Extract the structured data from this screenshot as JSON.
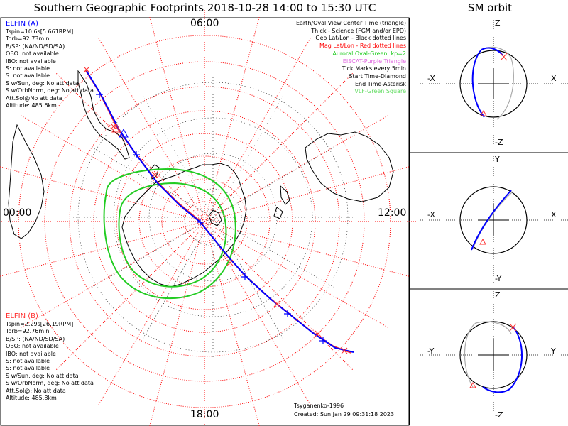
{
  "title": "Southern Geographic Footprints 2018-10-28 14:00 to 15:30 UTC",
  "sm_title": "SM orbit",
  "local_time_labels": {
    "top": "06:00",
    "left": "00:00",
    "right": "12:00",
    "bottom": "18:00"
  },
  "spacecraft_a": {
    "name": "ELFIN (A)",
    "color": "#0000ff",
    "lines": [
      "Tspin=10.6s[5.661RPM]",
      "Torb=92.73min",
      "B/SP: (NA/ND/SD/SA)",
      "OBO: not available",
      "IBO: not available",
      "S: not available",
      "S: not available",
      "S w/Sun, deg: No att data",
      "S w/OrbNorm, deg: No att data",
      "Att.Sol@No att data",
      "Altitude: 485.6km"
    ]
  },
  "spacecraft_b": {
    "name": "ELFIN (B)",
    "color": "#ff3030",
    "lines": [
      "Tspin=2.29s[26.19RPM]",
      "Torb=92.76min",
      "B/SP: (NA/ND/SD/SA)",
      "OBO: not available",
      "IBO: not available",
      "S: not available",
      "S: not available",
      "S w/Sun, deg: No att data",
      "S w/OrbNorm, deg: No att data",
      "Att.Sol@: No att data",
      "Altitude: 485.8km"
    ]
  },
  "legend": [
    {
      "text": "Earth/Oval View Center Time (triangle)",
      "color": "#000000"
    },
    {
      "text": "Thick - Science (FGM and/or EPD)",
      "color": "#000000"
    },
    {
      "text": "Geo Lat/Lon - Black dotted lines",
      "color": "#000000"
    },
    {
      "text": "Mag Lat/Lon - Red dotted lines",
      "color": "#ff0000"
    },
    {
      "text": "Auroral Oval-Green, kp=2",
      "color": "#22cc22"
    },
    {
      "text": "EISCAT-Purple Triangle",
      "color": "#e066e0"
    },
    {
      "text": "Tick Marks every 5min",
      "color": "#000000"
    },
    {
      "text": "Start Time-Diamond",
      "color": "#000000"
    },
    {
      "text": "End Time-Asterisk",
      "color": "#000000"
    },
    {
      "text": "VLF-Green Square",
      "color": "#66dd66"
    }
  ],
  "footer": {
    "model": "Tsyganenko-1996",
    "created": "Created: Sun Jan 29 09:31:18 2023"
  },
  "sm_panels": [
    {
      "top": "Z",
      "bottom": "-Z",
      "left": "-X",
      "right": "X"
    },
    {
      "top": "Y",
      "bottom": "-Y",
      "left": "-X",
      "right": "X"
    },
    {
      "top": "Z",
      "bottom": "-Z",
      "left": "-Y",
      "right": "Y"
    }
  ],
  "colors": {
    "orbit": "#0000ff",
    "oval": "#22cc22",
    "mag_grid": "#ff0000",
    "geo_grid": "#000000",
    "far_side": "#aaaaaa"
  }
}
